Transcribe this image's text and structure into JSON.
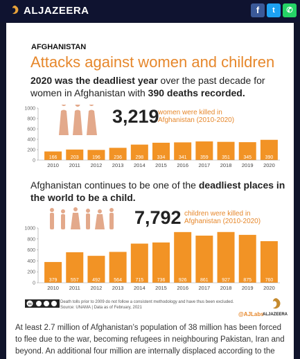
{
  "header": {
    "brand": "ALJAZEERA",
    "colors": {
      "bar": "#0f1330",
      "facebook": "#3b5998",
      "twitter": "#1da1f2",
      "whatsapp": "#25d366"
    }
  },
  "article": {
    "section": "AFGHANISTAN",
    "title": "Attacks against women and children",
    "lead_bold_1": "2020 was the deadliest year",
    "lead_text_1": " over the past decade for women in Afghanistan with ",
    "lead_bold_2": "390 deaths recorded.",
    "lead2_text": "Afghanistan continues to be one of the ",
    "lead2_bold": "deadliest places in the world to be a child.",
    "women_total": "3,219",
    "women_total_text": "women were killed in Afghanistan (2010-2020)",
    "children_total": "7,792",
    "children_total_text": "children were killed in Afghanistan (2010-2020)",
    "footnote_1": "Death tolls prior to 2009 do not follow a consistent methodology and have thus been excluded.",
    "footnote_2": "Source: UNAMA | Data as of February, 2021",
    "handle": "@AJLabs",
    "brand_small": "ALJAZEERA",
    "paragraph": "At least 2.7 million of Afghanistan’s population of 38 million has been forced to flee due to the war, becoming refugees in neighbouring Pakistan, Iran and beyond. An additional four million are internally displaced according to the"
  },
  "chart_data": [
    {
      "type": "bar",
      "title": "",
      "categories": [
        "2010",
        "2011",
        "2012",
        "2013",
        "2014",
        "2015",
        "2016",
        "2017",
        "2018",
        "2019",
        "2020"
      ],
      "values": [
        166,
        203,
        196,
        236,
        298,
        334,
        341,
        359,
        351,
        345,
        390
      ],
      "ylim": [
        0,
        1000
      ],
      "yticks": [
        "0",
        "200",
        "400",
        "600",
        "800",
        "1000"
      ],
      "color": "#f29325"
    },
    {
      "type": "bar",
      "title": "",
      "categories": [
        "2010",
        "2011",
        "2012",
        "2013",
        "2014",
        "2015",
        "2016",
        "2017",
        "2018",
        "2019",
        "2020"
      ],
      "values": [
        379,
        557,
        492,
        564,
        715,
        736,
        926,
        861,
        927,
        875,
        760
      ],
      "ylim": [
        0,
        1000
      ],
      "yticks": [
        "0",
        "200",
        "400",
        "600",
        "800",
        "1000"
      ],
      "color": "#f29325"
    }
  ]
}
